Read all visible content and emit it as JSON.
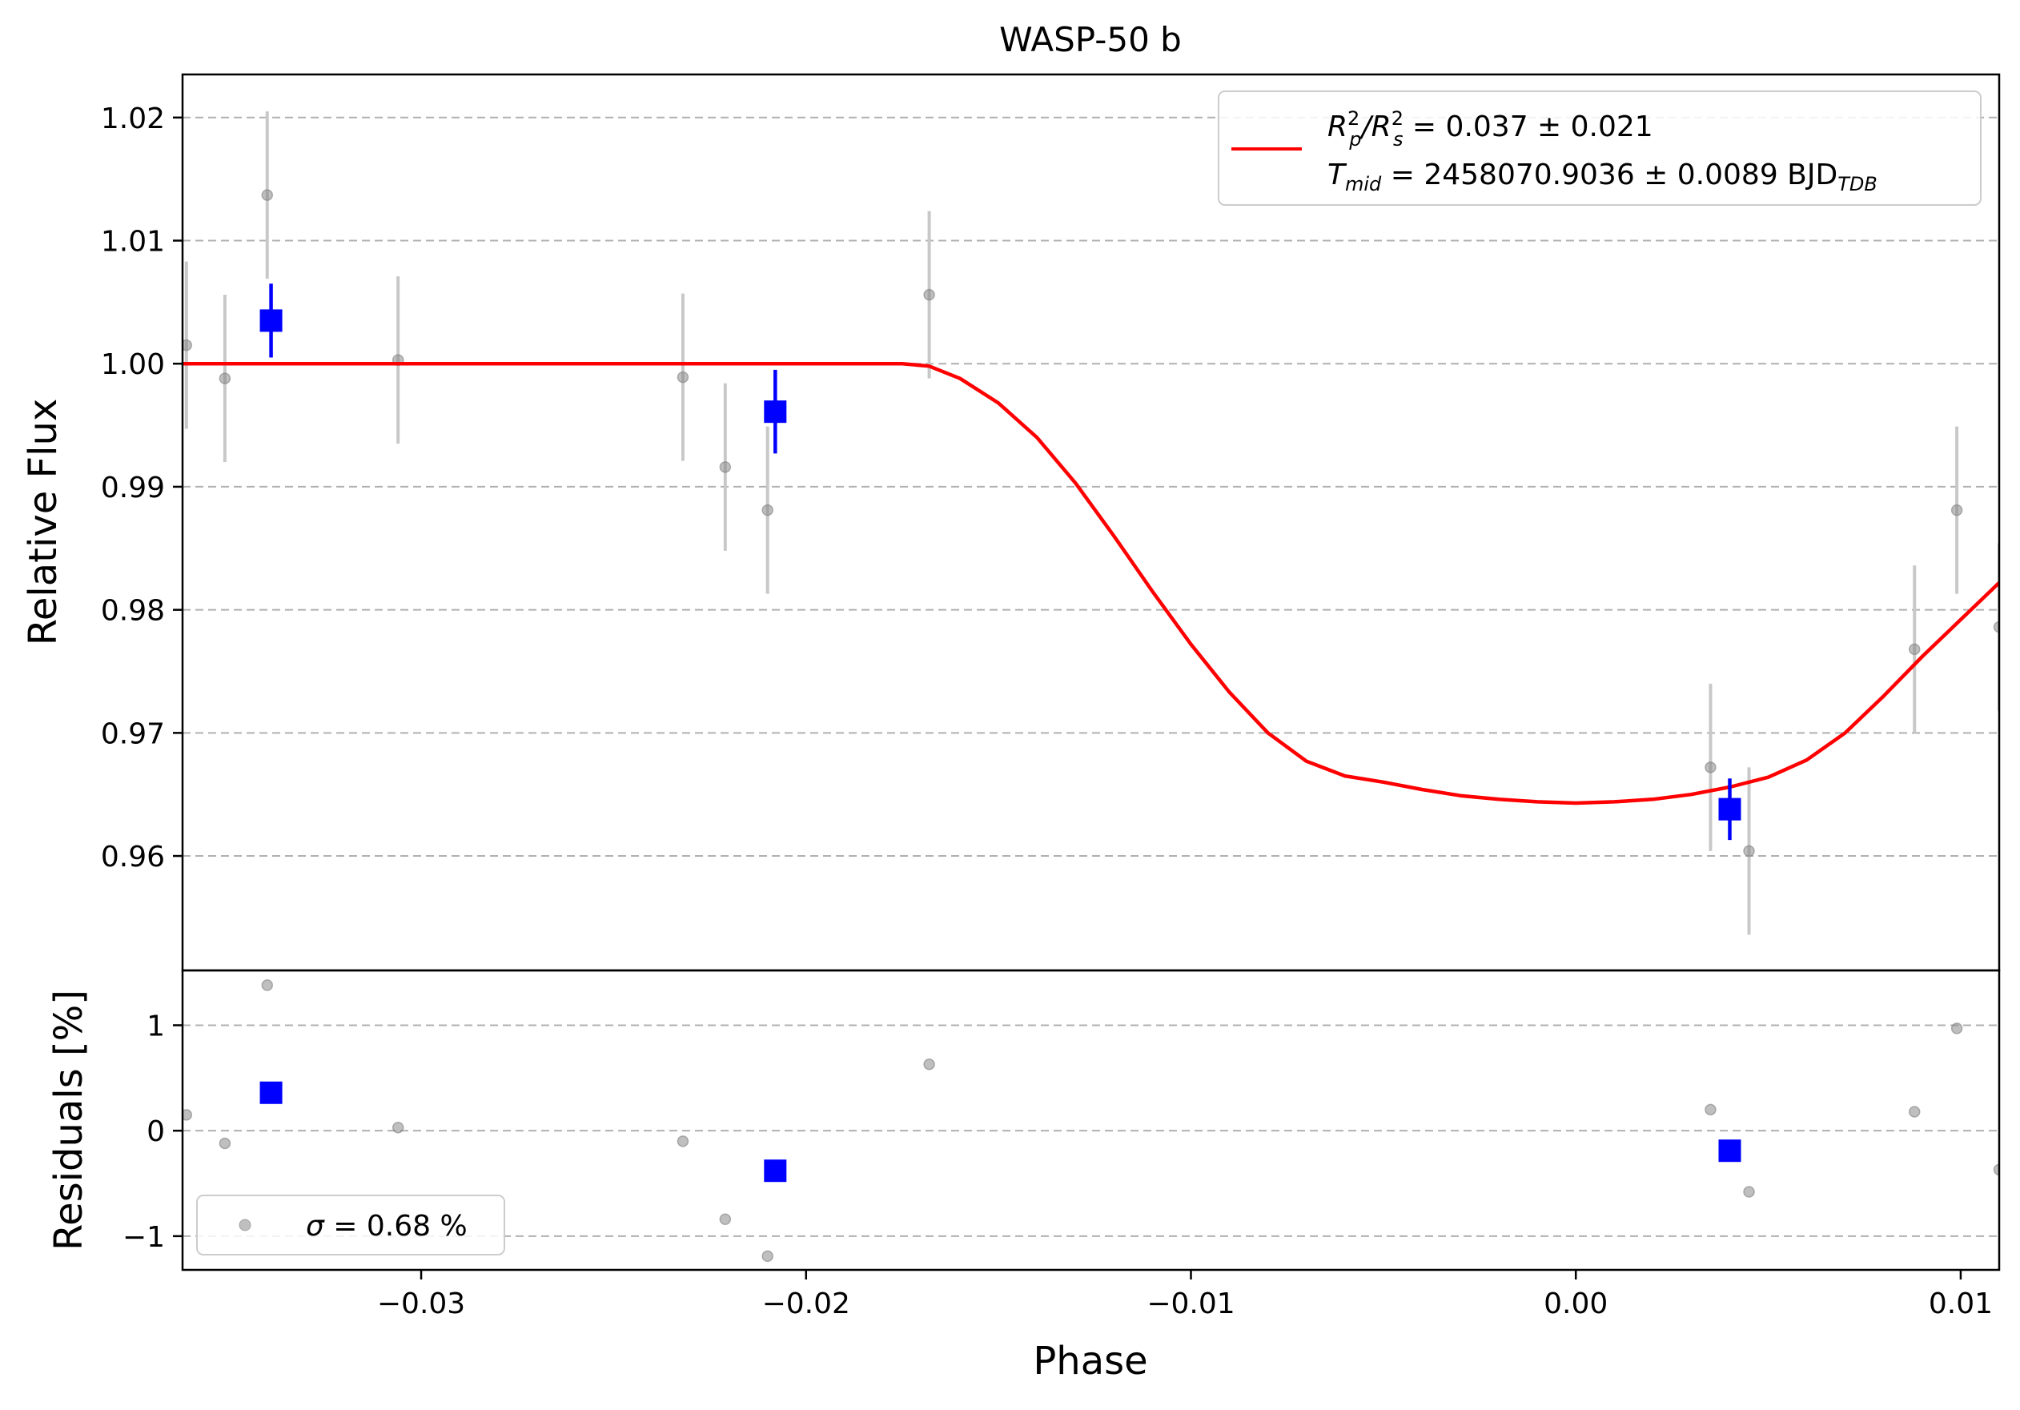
{
  "chart_data": [
    {
      "type": "scatter",
      "panel": "main",
      "title": "WASP-50 b",
      "xlabel": "Phase",
      "ylabel": "Relative Flux",
      "xlim": [
        -0.0362,
        0.011
      ],
      "ylim": [
        0.9507,
        1.0235
      ],
      "yticks": [
        0.96,
        0.97,
        0.98,
        0.99,
        1.0,
        1.01,
        1.02
      ],
      "ytick_labels": [
        "0.96",
        "0.97",
        "0.98",
        "0.99",
        "1.00",
        "1.01",
        "1.02"
      ],
      "grid": "horizontal dashed",
      "legend_position": "top-right",
      "legend": {
        "line1_prefix": "R",
        "line1_sub_p": "p",
        "line1_slash": "/R",
        "line1_sub_s": "s",
        "line1_sup": "2",
        "line1_value": " = 0.037 ± 0.021",
        "line2_prefix": "T",
        "line2_sub": "mid",
        "line2_value": " = 2458070.9036 ± 0.0089 BJD",
        "line2_unit_sub": "TDB"
      },
      "series": [
        {
          "name": "data",
          "color": "#808080",
          "points": [
            {
              "x": -0.0361,
              "y": 1.0015,
              "err": 0.0068
            },
            {
              "x": -0.0351,
              "y": 0.9988,
              "err": 0.0068
            },
            {
              "x": -0.034,
              "y": 1.0137,
              "err": 0.0068
            },
            {
              "x": -0.0306,
              "y": 1.0003,
              "err": 0.0068
            },
            {
              "x": -0.0232,
              "y": 0.9989,
              "err": 0.0068
            },
            {
              "x": -0.0221,
              "y": 0.9916,
              "err": 0.0068
            },
            {
              "x": -0.021,
              "y": 0.9881,
              "err": 0.0068
            },
            {
              "x": -0.0168,
              "y": 1.0056,
              "err": 0.0068
            },
            {
              "x": 0.0035,
              "y": 0.9672,
              "err": 0.0068
            },
            {
              "x": 0.0045,
              "y": 0.9604,
              "err": 0.0068
            },
            {
              "x": 0.0088,
              "y": 0.9768,
              "err": 0.0068
            },
            {
              "x": 0.0099,
              "y": 0.9881,
              "err": 0.0068
            },
            {
              "x": 0.011,
              "y": 0.9786,
              "err": 0.0068
            }
          ]
        },
        {
          "name": "binned",
          "color": "#0000ff",
          "points": [
            {
              "x": -0.0339,
              "y": 1.0035,
              "err": 0.003
            },
            {
              "x": -0.0208,
              "y": 0.9961,
              "err": 0.0034
            },
            {
              "x": 0.004,
              "y": 0.9638,
              "err": 0.0025
            }
          ]
        },
        {
          "name": "model",
          "color": "#ff0000",
          "curve": [
            {
              "x": -0.0362,
              "y": 1.0
            },
            {
              "x": -0.0175,
              "y": 1.0
            },
            {
              "x": -0.0168,
              "y": 0.9998
            },
            {
              "x": -0.016,
              "y": 0.9988
            },
            {
              "x": -0.015,
              "y": 0.9968
            },
            {
              "x": -0.014,
              "y": 0.994
            },
            {
              "x": -0.013,
              "y": 0.9903
            },
            {
              "x": -0.012,
              "y": 0.986
            },
            {
              "x": -0.011,
              "y": 0.9815
            },
            {
              "x": -0.01,
              "y": 0.9772
            },
            {
              "x": -0.009,
              "y": 0.9733
            },
            {
              "x": -0.008,
              "y": 0.97
            },
            {
              "x": -0.007,
              "y": 0.9677
            },
            {
              "x": -0.006,
              "y": 0.9665
            },
            {
              "x": -0.005,
              "y": 0.966
            },
            {
              "x": -0.004,
              "y": 0.9654
            },
            {
              "x": -0.003,
              "y": 0.9649
            },
            {
              "x": -0.002,
              "y": 0.9646
            },
            {
              "x": -0.001,
              "y": 0.9644
            },
            {
              "x": 0.0,
              "y": 0.9643
            },
            {
              "x": 0.001,
              "y": 0.9644
            },
            {
              "x": 0.002,
              "y": 0.9646
            },
            {
              "x": 0.003,
              "y": 0.965
            },
            {
              "x": 0.004,
              "y": 0.9656
            },
            {
              "x": 0.005,
              "y": 0.9664
            },
            {
              "x": 0.006,
              "y": 0.9678
            },
            {
              "x": 0.007,
              "y": 0.97
            },
            {
              "x": 0.008,
              "y": 0.973
            },
            {
              "x": 0.009,
              "y": 0.9762
            },
            {
              "x": 0.01,
              "y": 0.9792
            },
            {
              "x": 0.011,
              "y": 0.9822
            }
          ]
        }
      ]
    },
    {
      "type": "scatter",
      "panel": "residuals",
      "xlabel": "Phase",
      "ylabel": "Residuals [%]",
      "xlim": [
        -0.0362,
        0.011
      ],
      "ylim": [
        -1.32,
        1.52
      ],
      "xticks": [
        -0.03,
        -0.02,
        -0.01,
        0.0,
        0.01
      ],
      "xtick_labels": [
        "−0.03",
        "−0.02",
        "−0.01",
        "0.00",
        "0.01"
      ],
      "yticks": [
        -1,
        0,
        1
      ],
      "ytick_labels": [
        "−1",
        "0",
        "1"
      ],
      "grid": "horizontal dashed",
      "legend_position": "lower-left",
      "legend": {
        "sigma_symbol": "σ",
        "sigma_text": " = 0.68 %"
      },
      "series": [
        {
          "name": "residuals",
          "color": "#808080",
          "points": [
            {
              "x": -0.0361,
              "y": 0.15
            },
            {
              "x": -0.0351,
              "y": -0.12
            },
            {
              "x": -0.034,
              "y": 1.38
            },
            {
              "x": -0.0306,
              "y": 0.03
            },
            {
              "x": -0.0232,
              "y": -0.1
            },
            {
              "x": -0.0221,
              "y": -0.84
            },
            {
              "x": -0.021,
              "y": -1.19
            },
            {
              "x": -0.0168,
              "y": 0.63
            },
            {
              "x": 0.0035,
              "y": 0.2
            },
            {
              "x": 0.0045,
              "y": -0.58
            },
            {
              "x": 0.0088,
              "y": 0.18
            },
            {
              "x": 0.0099,
              "y": 0.97
            },
            {
              "x": 0.011,
              "y": -0.37
            }
          ]
        },
        {
          "name": "binned-residuals",
          "color": "#0000ff",
          "points": [
            {
              "x": -0.0339,
              "y": 0.36
            },
            {
              "x": -0.0208,
              "y": -0.38
            },
            {
              "x": 0.004,
              "y": -0.19
            }
          ]
        }
      ]
    }
  ]
}
